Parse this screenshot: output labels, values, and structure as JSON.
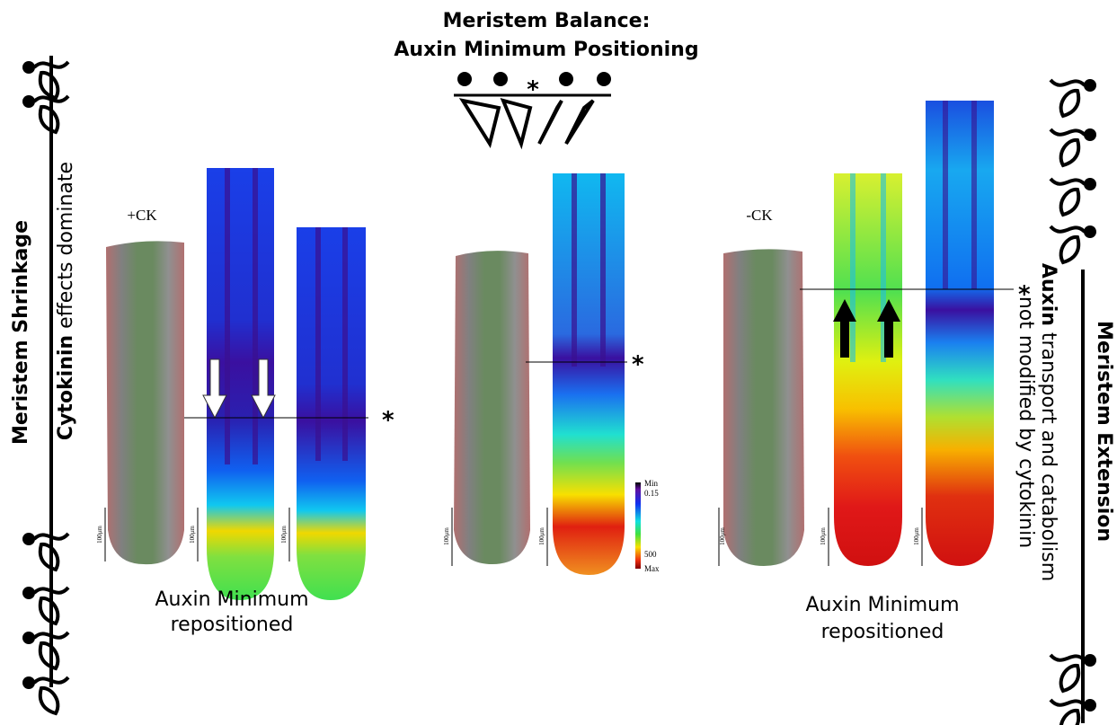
{
  "title": {
    "line1": "Meristem Balance:",
    "line2": "Auxin Minimum Positioning"
  },
  "left": {
    "label": "Meristem Shrinkage",
    "note_bold": "Cytokinin",
    "note": "effects dominate",
    "treatment": "+CK",
    "caption": [
      "Auxin Minimum",
      "repositioned"
    ]
  },
  "right": {
    "label": "Meristem Extension",
    "note_bold": "Auxin",
    "note": "transport and catabolism",
    "note2": "not modified by cytokinin",
    "treatment": "-CK",
    "caption": [
      "Auxin Minimum",
      "repositioned"
    ]
  },
  "marker": "*",
  "scale_bar": "100μm",
  "colorbar": {
    "min": "Min",
    "low": "0.15",
    "high": "500",
    "max": "Max"
  }
}
